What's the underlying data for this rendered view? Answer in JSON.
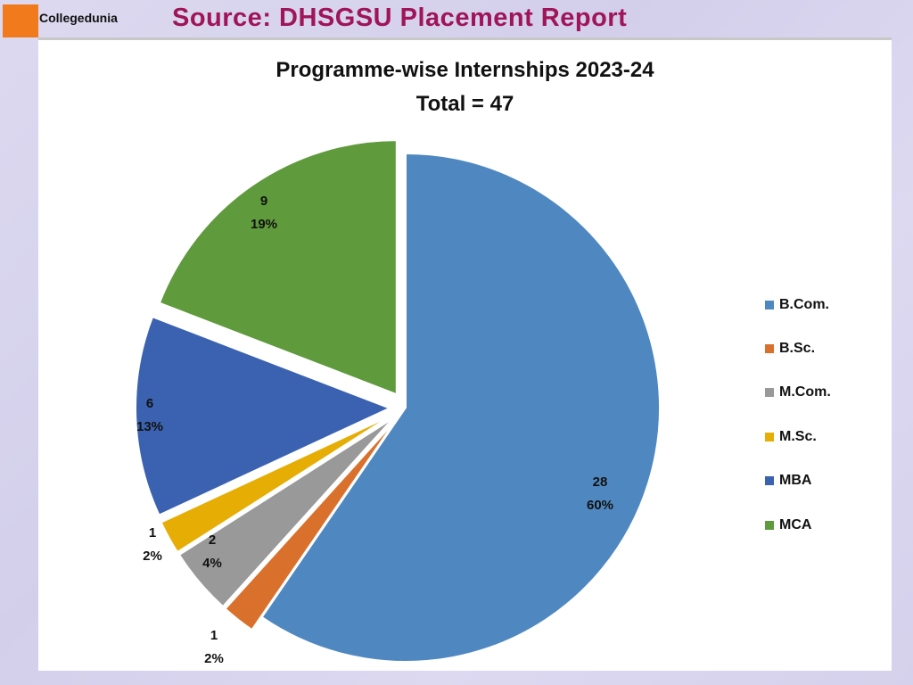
{
  "header": {
    "brand": "Collegedunia",
    "source": "Source: DHSGSU Placement Report"
  },
  "chart_data": {
    "type": "pie",
    "title": "Programme-wise Internships 2023-24",
    "subtitle": "Total = 47",
    "categories": [
      "B.Com.",
      "B.Sc.",
      "M.Com.",
      "M.Sc.",
      "MBA",
      "MCA"
    ],
    "values": [
      28,
      1,
      2,
      1,
      6,
      9
    ],
    "percentages": [
      "60%",
      "2%",
      "4%",
      "2%",
      "13%",
      "19%"
    ],
    "colors": [
      "#4f88c0",
      "#d9702c",
      "#999999",
      "#e6ad05",
      "#3b62b0",
      "#5f9a3c"
    ],
    "legend_position": "right",
    "exploded": true
  },
  "legend": {
    "items": [
      {
        "label": "B.Com.",
        "color": "#4f88c0"
      },
      {
        "label": "B.Sc.",
        "color": "#d9702c"
      },
      {
        "label": "M.Com.",
        "color": "#999999"
      },
      {
        "label": "M.Sc.",
        "color": "#e6ad05"
      },
      {
        "label": "MBA",
        "color": "#3b62b0"
      },
      {
        "label": "MCA",
        "color": "#5f9a3c"
      }
    ]
  },
  "labels": [
    {
      "value": "28",
      "pct": "60%"
    },
    {
      "value": "1",
      "pct": "2%"
    },
    {
      "value": "2",
      "pct": "4%"
    },
    {
      "value": "1",
      "pct": "2%"
    },
    {
      "value": "6",
      "pct": "13%"
    },
    {
      "value": "9",
      "pct": "19%"
    }
  ]
}
